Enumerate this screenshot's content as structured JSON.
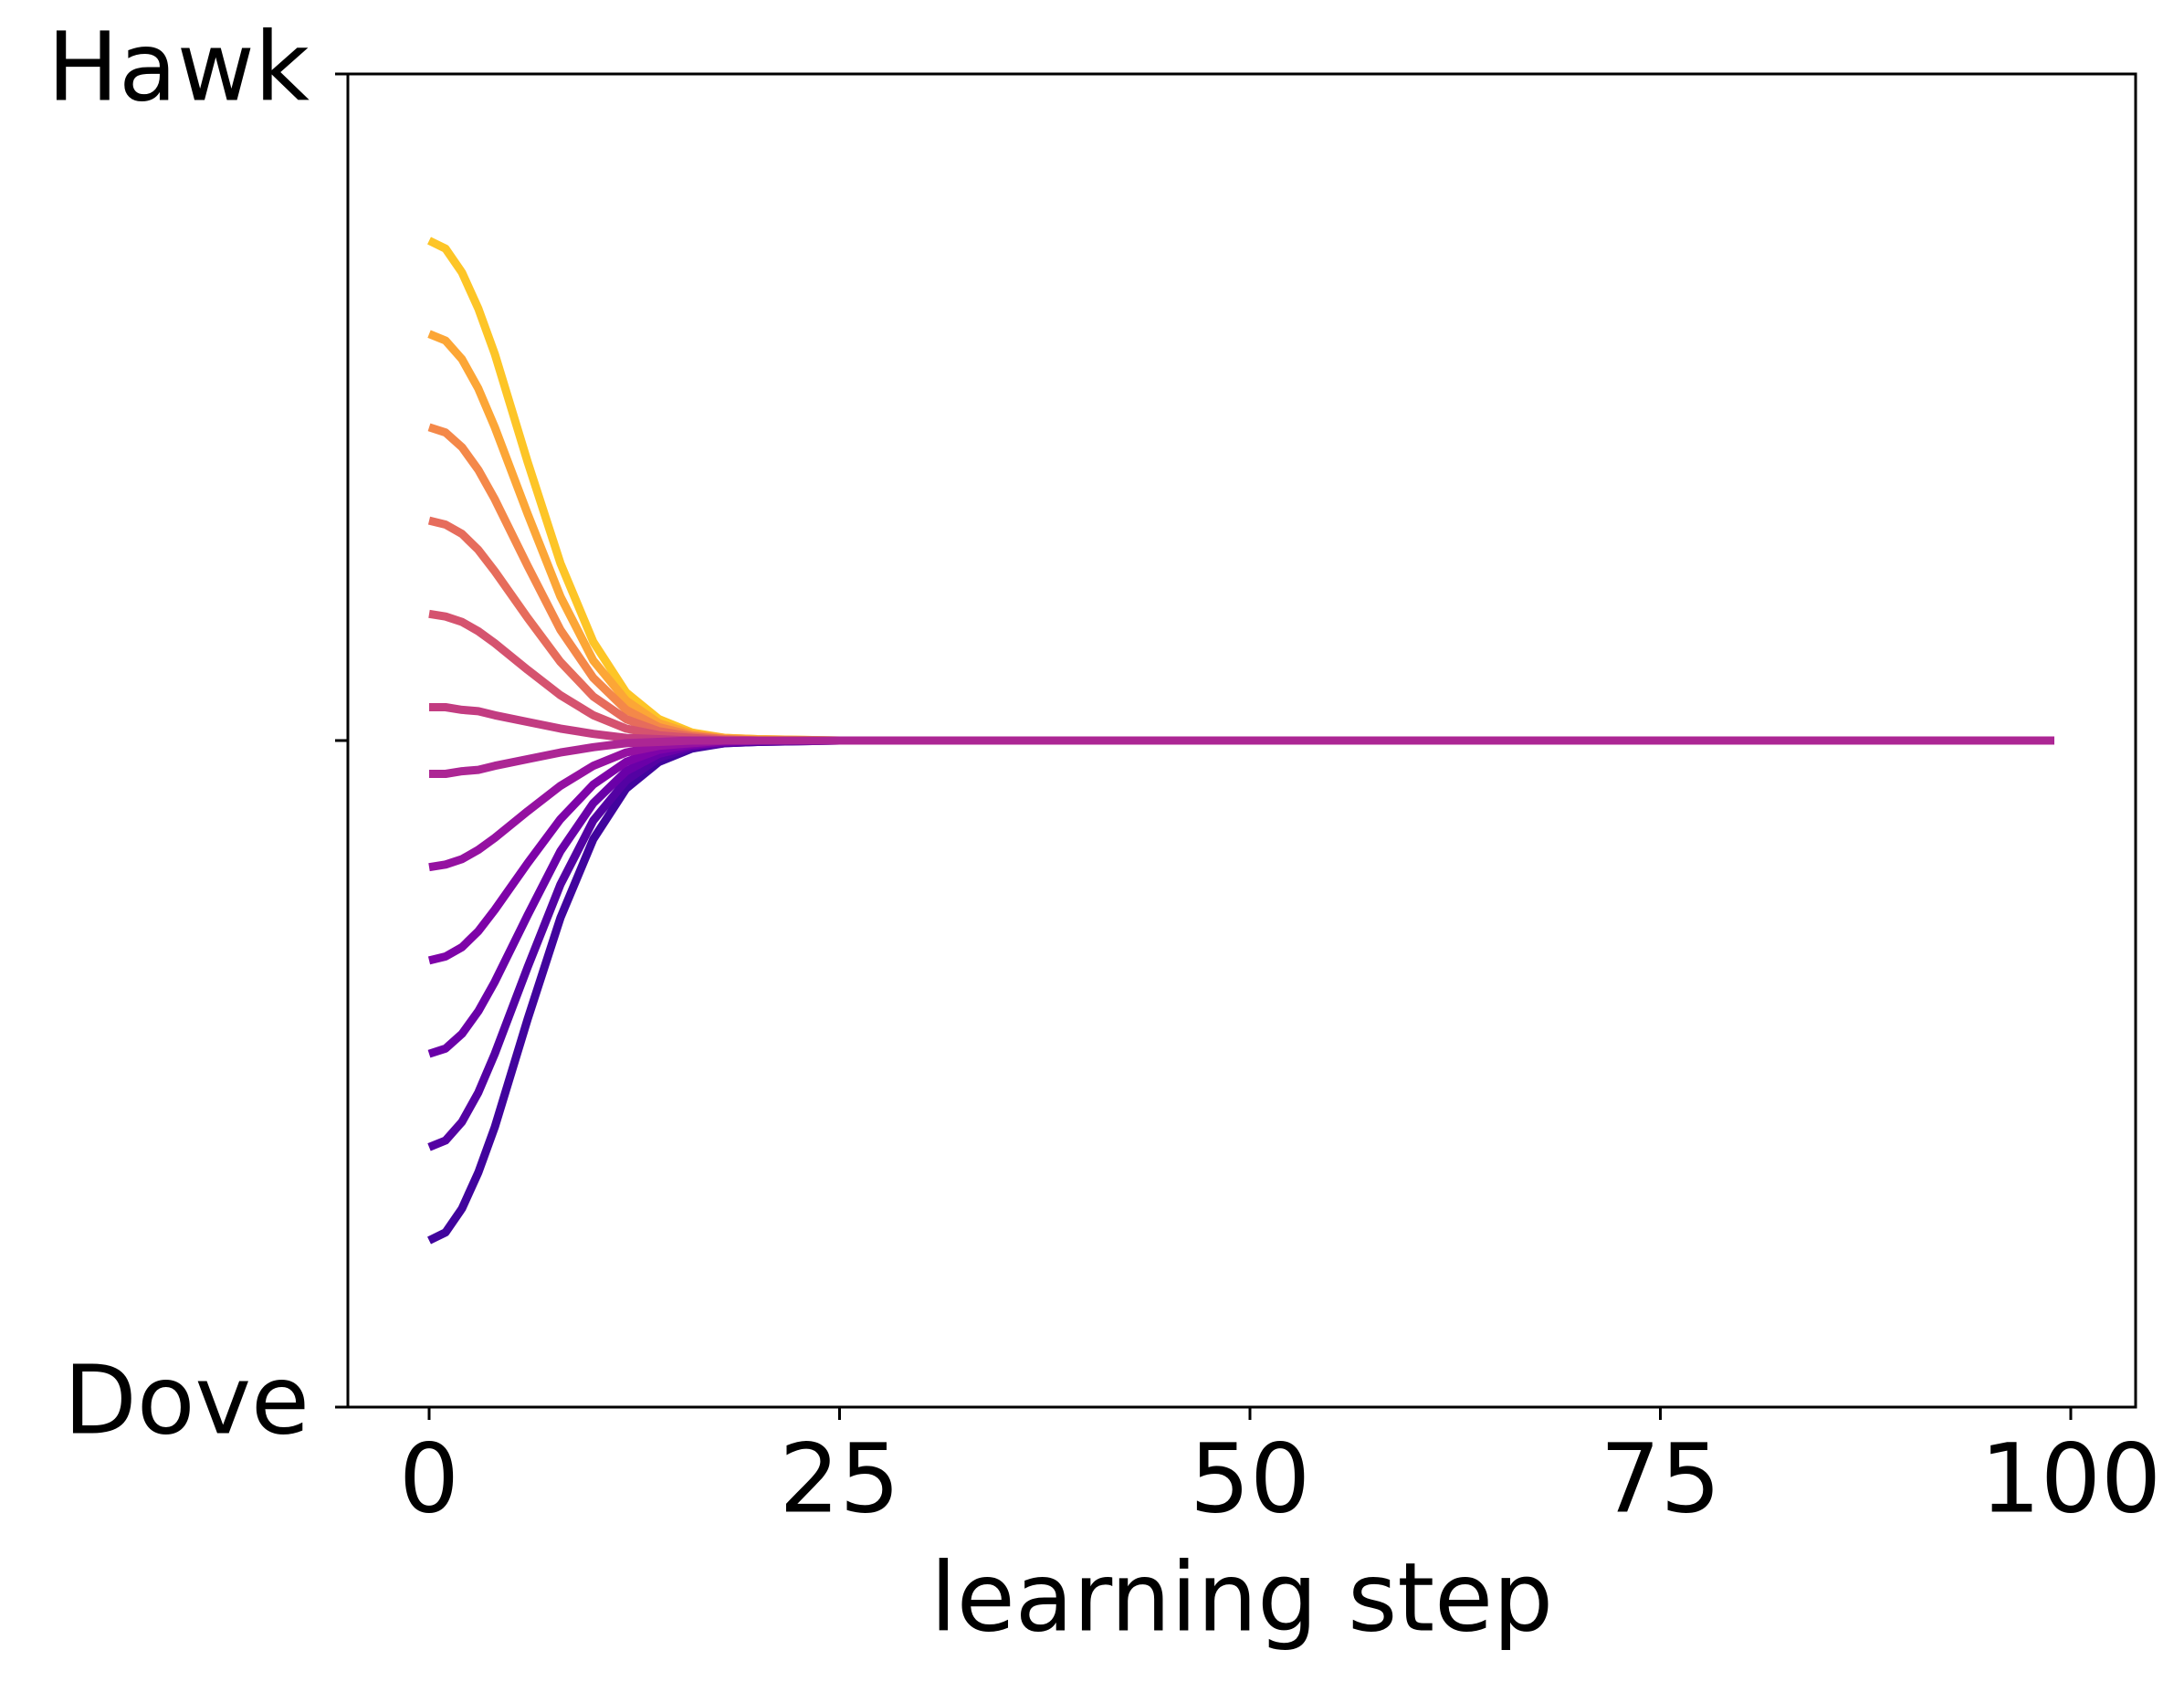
{
  "chart_data": {
    "type": "line",
    "xlabel": "learning step",
    "x": [
      0,
      1,
      2,
      3,
      4,
      6,
      8,
      10,
      12,
      14,
      16,
      18,
      20,
      25,
      30,
      99
    ],
    "series": [
      {
        "color": "#fdc527",
        "values": [
          0.875,
          0.869,
          0.851,
          0.824,
          0.79,
          0.709,
          0.633,
          0.574,
          0.536,
          0.516,
          0.506,
          0.502,
          0.501,
          0.5,
          0.5,
          0.5
        ]
      },
      {
        "color": "#fca636",
        "values": [
          0.805,
          0.8,
          0.786,
          0.764,
          0.735,
          0.67,
          0.608,
          0.56,
          0.53,
          0.513,
          0.505,
          0.502,
          0.501,
          0.5,
          0.5,
          0.5
        ]
      },
      {
        "color": "#f48849",
        "values": [
          0.735,
          0.731,
          0.72,
          0.703,
          0.681,
          0.631,
          0.583,
          0.547,
          0.523,
          0.51,
          0.504,
          0.501,
          0.5,
          0.5,
          0.5,
          0.5
        ]
      },
      {
        "color": "#e66c5c",
        "values": [
          0.665,
          0.662,
          0.655,
          0.643,
          0.627,
          0.592,
          0.559,
          0.533,
          0.516,
          0.507,
          0.503,
          0.501,
          0.5,
          0.5,
          0.5,
          0.5
        ]
      },
      {
        "color": "#d5536f",
        "values": [
          0.595,
          0.593,
          0.589,
          0.582,
          0.573,
          0.553,
          0.534,
          0.519,
          0.509,
          0.504,
          0.502,
          0.5,
          0.5,
          0.5,
          0.5,
          0.5
        ]
      },
      {
        "color": "#c23c81",
        "values": [
          0.525,
          0.525,
          0.523,
          0.522,
          0.519,
          0.514,
          0.509,
          0.505,
          0.502,
          0.501,
          0.5,
          0.5,
          0.5,
          0.5,
          0.5,
          0.5
        ]
      },
      {
        "color": "#41049d",
        "values": [
          0.125,
          0.131,
          0.149,
          0.176,
          0.21,
          0.291,
          0.367,
          0.426,
          0.464,
          0.484,
          0.494,
          0.498,
          0.499,
          0.5,
          0.5,
          0.5
        ]
      },
      {
        "color": "#5402a3",
        "values": [
          0.195,
          0.2,
          0.214,
          0.236,
          0.265,
          0.33,
          0.392,
          0.44,
          0.47,
          0.487,
          0.495,
          0.498,
          0.499,
          0.5,
          0.5,
          0.5
        ]
      },
      {
        "color": "#6a00a8",
        "values": [
          0.265,
          0.269,
          0.28,
          0.297,
          0.319,
          0.369,
          0.417,
          0.453,
          0.477,
          0.49,
          0.496,
          0.499,
          0.5,
          0.5,
          0.5,
          0.5
        ]
      },
      {
        "color": "#7e03a8",
        "values": [
          0.335,
          0.338,
          0.345,
          0.357,
          0.373,
          0.408,
          0.441,
          0.467,
          0.484,
          0.493,
          0.497,
          0.499,
          0.5,
          0.5,
          0.5,
          0.5
        ]
      },
      {
        "color": "#9511a1",
        "values": [
          0.405,
          0.407,
          0.411,
          0.418,
          0.427,
          0.447,
          0.466,
          0.481,
          0.491,
          0.496,
          0.498,
          0.5,
          0.5,
          0.5,
          0.5,
          0.5
        ]
      },
      {
        "color": "#ac2694",
        "values": [
          0.475,
          0.475,
          0.477,
          0.478,
          0.481,
          0.486,
          0.491,
          0.495,
          0.498,
          0.499,
          0.5,
          0.5,
          0.5,
          0.5,
          0.5,
          0.5
        ]
      }
    ],
    "xlim": [
      -4.95,
      103.95
    ],
    "xticks": [
      0,
      25,
      50,
      75,
      100
    ],
    "ylim": [
      0,
      1
    ],
    "yticks": [
      {
        "value": 0,
        "label": "Dove"
      },
      {
        "value": 0.5,
        "label": null
      },
      {
        "value": 1,
        "label": "Hawk"
      }
    ]
  }
}
